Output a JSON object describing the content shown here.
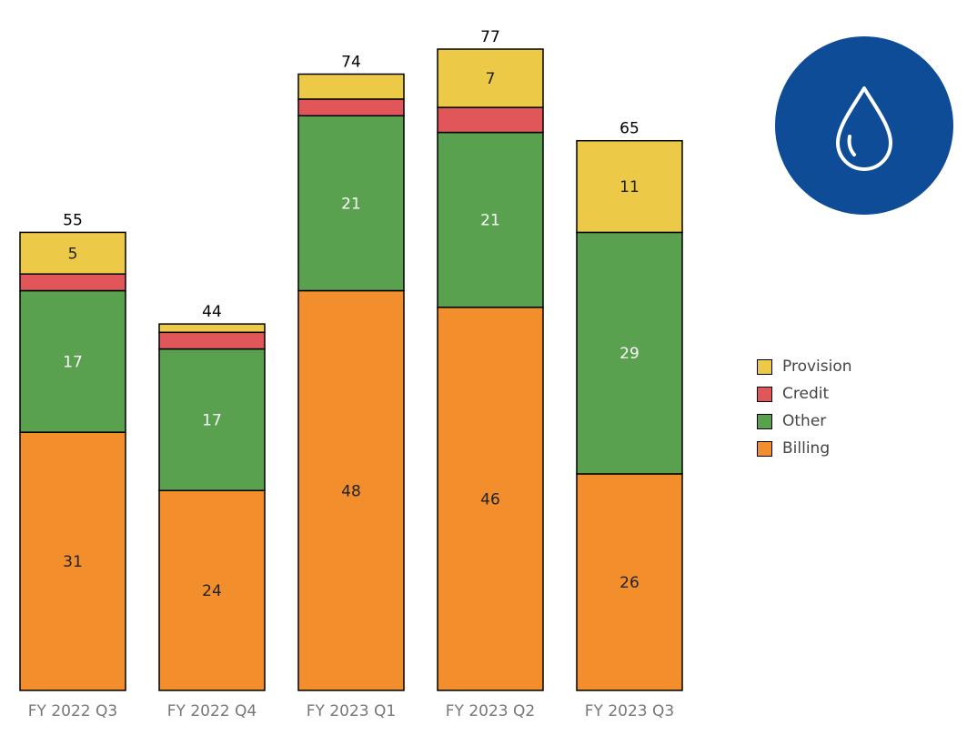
{
  "chart_data": {
    "type": "bar",
    "stacked": true,
    "categories": [
      "FY 2022 Q3",
      "FY 2022 Q4",
      "FY 2023 Q1",
      "FY 2023 Q2",
      "FY 2023 Q3"
    ],
    "totals": [
      55,
      44,
      74,
      77,
      65
    ],
    "series": [
      {
        "name": "Billing",
        "color": "#F28E2B",
        "values": [
          31,
          24,
          48,
          46,
          26
        ],
        "value_labels": [
          "31",
          "24",
          "48",
          "46",
          "26"
        ]
      },
      {
        "name": "Other",
        "color": "#59A14F",
        "values": [
          17,
          17,
          21,
          21,
          29
        ],
        "value_labels": [
          "17",
          "17",
          "21",
          "21",
          "29"
        ]
      },
      {
        "name": "Credit",
        "color": "#E15759",
        "values": [
          2,
          2,
          2,
          3,
          0
        ],
        "value_labels": [
          "",
          "",
          "",
          "",
          ""
        ]
      },
      {
        "name": "Provision",
        "color": "#EDC948",
        "values": [
          5,
          1,
          3,
          7,
          11
        ],
        "value_labels": [
          "5",
          "",
          "",
          "7",
          "11"
        ]
      }
    ],
    "ylim": [
      0,
      77
    ],
    "grid": false,
    "legend": "right",
    "legend_order": [
      "Provision",
      "Credit",
      "Other",
      "Billing"
    ]
  },
  "logo": {
    "icon": "water-drop-icon",
    "color": "#0F4C97"
  }
}
